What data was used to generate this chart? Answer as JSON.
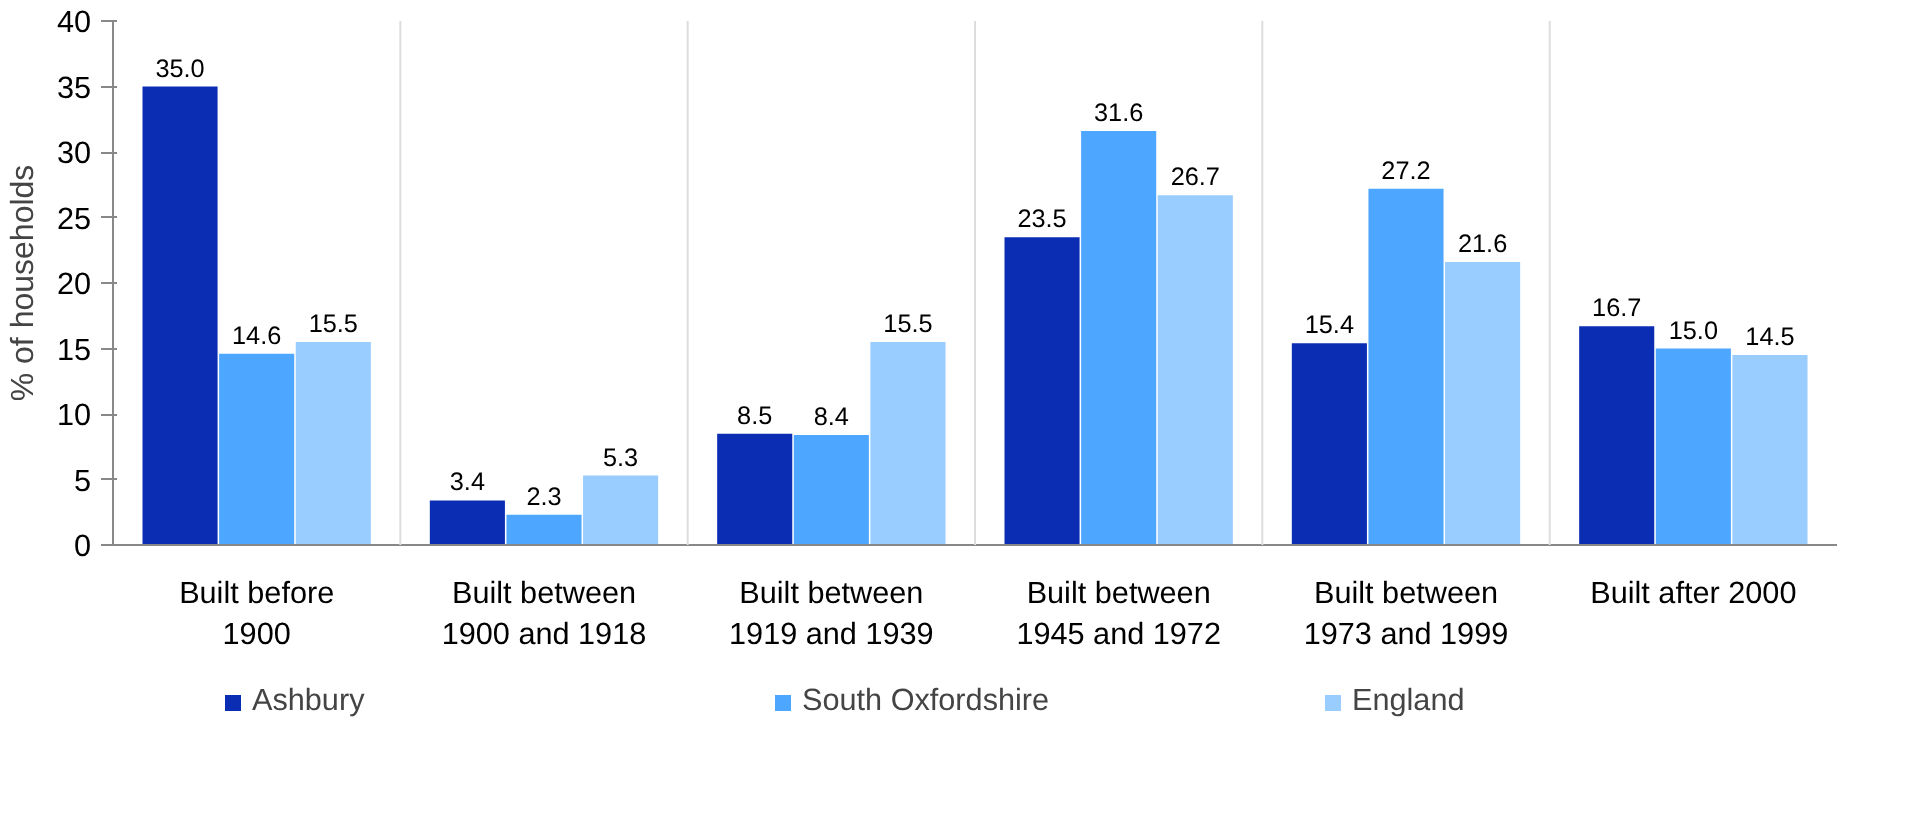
{
  "chart_data": {
    "type": "bar",
    "ylabel": "% of households",
    "categories": [
      "Built before 1900",
      "Built between 1900 and 1918",
      "Built between 1919 and 1939",
      "Built between 1945 and 1972",
      "Built between 1973 and 1999",
      "Built after 2000"
    ],
    "series": [
      {
        "name": "Ashbury",
        "color": "#0a2db4",
        "values": [
          35.0,
          3.4,
          8.5,
          23.5,
          15.4,
          16.7
        ],
        "value_labels": [
          "35.0",
          "3.4",
          "8.5",
          "23.5",
          "15.4",
          "16.7"
        ]
      },
      {
        "name": "South Oxfordshire",
        "color": "#4da6ff",
        "values": [
          14.6,
          2.3,
          8.4,
          31.6,
          27.2,
          15.0
        ],
        "value_labels": [
          "14.6",
          "2.3",
          "8.4",
          "31.6",
          "27.2",
          "15.0"
        ]
      },
      {
        "name": "England",
        "color": "#99ccff",
        "values": [
          15.5,
          5.3,
          15.5,
          26.7,
          21.6,
          14.5
        ],
        "value_labels": [
          "15.5",
          "5.3",
          "15.5",
          "26.7",
          "21.6",
          "14.5"
        ]
      }
    ],
    "ylim": [
      0,
      40
    ],
    "yticks": [
      0,
      5,
      10,
      15,
      20,
      25,
      30,
      35,
      40
    ],
    "grid": "x",
    "legend": "bottom"
  }
}
